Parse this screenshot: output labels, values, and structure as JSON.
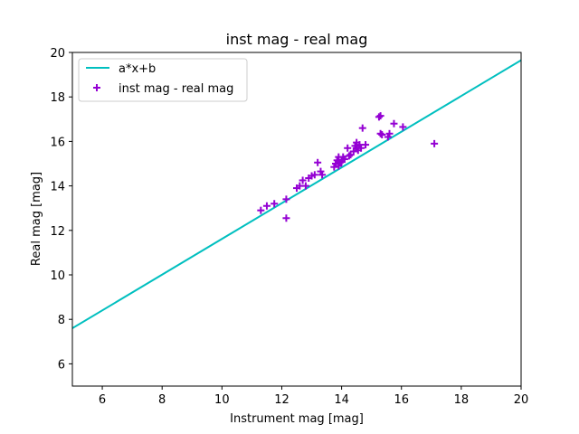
{
  "chart_data": {
    "type": "scatter",
    "title": "inst mag - real mag",
    "xlabel": "Instrument mag [mag]",
    "ylabel": "Real mag [mag]",
    "xlim": [
      5,
      20
    ],
    "ylim": [
      5,
      20
    ],
    "xticks": [
      6,
      8,
      10,
      12,
      14,
      16,
      18,
      20
    ],
    "yticks": [
      6,
      8,
      10,
      12,
      14,
      16,
      18,
      20
    ],
    "grid": false,
    "legend_position": "top-left",
    "series": [
      {
        "name": "a*x+b",
        "kind": "line",
        "color": "#00bfbf",
        "x": [
          5,
          20
        ],
        "y": [
          7.6,
          19.65
        ]
      },
      {
        "name": "inst mag - real mag",
        "kind": "scatter",
        "marker": "plus",
        "color": "#9400d3",
        "points": [
          [
            11.3,
            12.9
          ],
          [
            11.5,
            13.1
          ],
          [
            11.75,
            13.2
          ],
          [
            12.15,
            13.4
          ],
          [
            12.15,
            12.55
          ],
          [
            12.5,
            13.9
          ],
          [
            12.6,
            14.0
          ],
          [
            12.7,
            14.25
          ],
          [
            12.8,
            14.0
          ],
          [
            12.9,
            14.35
          ],
          [
            13.0,
            14.45
          ],
          [
            13.1,
            14.5
          ],
          [
            13.2,
            15.05
          ],
          [
            13.3,
            14.65
          ],
          [
            13.35,
            14.5
          ],
          [
            13.75,
            14.85
          ],
          [
            13.8,
            15.0
          ],
          [
            13.85,
            15.15
          ],
          [
            13.9,
            15.3
          ],
          [
            13.9,
            14.9
          ],
          [
            13.95,
            15.05
          ],
          [
            14.0,
            15.1
          ],
          [
            14.05,
            15.3
          ],
          [
            14.1,
            15.2
          ],
          [
            14.2,
            15.7
          ],
          [
            14.25,
            15.35
          ],
          [
            14.3,
            15.4
          ],
          [
            14.4,
            15.55
          ],
          [
            14.45,
            15.8
          ],
          [
            14.5,
            15.7
          ],
          [
            14.5,
            15.95
          ],
          [
            14.55,
            15.6
          ],
          [
            14.6,
            15.85
          ],
          [
            14.65,
            15.7
          ],
          [
            14.7,
            16.6
          ],
          [
            14.8,
            15.85
          ],
          [
            15.25,
            17.1
          ],
          [
            15.3,
            17.15
          ],
          [
            15.3,
            16.35
          ],
          [
            15.35,
            16.3
          ],
          [
            15.55,
            16.2
          ],
          [
            15.6,
            16.35
          ],
          [
            15.75,
            16.8
          ],
          [
            16.05,
            16.65
          ],
          [
            17.1,
            15.9
          ]
        ]
      }
    ]
  }
}
